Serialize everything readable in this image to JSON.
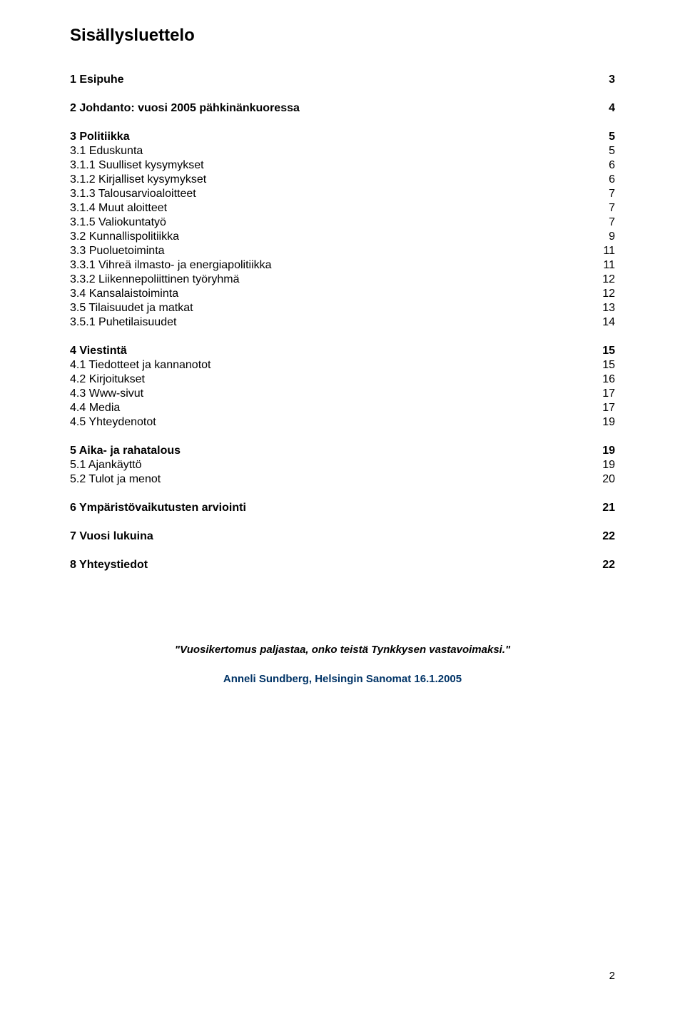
{
  "title": "Sisällysluettelo",
  "toc": [
    {
      "label": "1 Esipuhe",
      "page": "3",
      "bold": true,
      "gap_after": "m"
    },
    {
      "label": "2 Johdanto: vuosi 2005 pähkinänkuoressa",
      "page": "4",
      "bold": true,
      "gap_after": "m"
    },
    {
      "label": "3 Politiikka",
      "page": "5",
      "bold": true
    },
    {
      "label": "3.1 Eduskunta",
      "page": "5"
    },
    {
      "label": "3.1.1 Suulliset kysymykset",
      "page": "6"
    },
    {
      "label": "3.1.2 Kirjalliset kysymykset",
      "page": "6"
    },
    {
      "label": "3.1.3 Talousarvioaloitteet",
      "page": "7"
    },
    {
      "label": "3.1.4 Muut aloitteet",
      "page": "7"
    },
    {
      "label": "3.1.5 Valiokuntatyö",
      "page": "7"
    },
    {
      "label": "3.2 Kunnallispolitiikka",
      "page": "9"
    },
    {
      "label": "3.3 Puoluetoiminta",
      "page": "11"
    },
    {
      "label": "3.3.1 Vihreä ilmasto- ja energiapolitiikka",
      "page": "11"
    },
    {
      "label": "3.3.2 Liikennepoliittinen työryhmä",
      "page": "12"
    },
    {
      "label": "3.4 Kansalaistoiminta",
      "page": "12"
    },
    {
      "label": "3.5 Tilaisuudet ja matkat",
      "page": "13"
    },
    {
      "label": "3.5.1 Puhetilaisuudet",
      "page": "14",
      "gap_after": "m"
    },
    {
      "label": "4 Viestintä",
      "page": "15",
      "bold": true
    },
    {
      "label": "4.1 Tiedotteet ja kannanotot",
      "page": "15"
    },
    {
      "label": "4.2 Kirjoitukset",
      "page": "16"
    },
    {
      "label": "4.3 Www-sivut",
      "page": "17"
    },
    {
      "label": "4.4 Media",
      "page": "17"
    },
    {
      "label": "4.5 Yhteydenotot",
      "page": "19",
      "gap_after": "m"
    },
    {
      "label": "5 Aika- ja rahatalous",
      "page": "19",
      "bold": true
    },
    {
      "label": "5.1 Ajankäyttö",
      "page": "19"
    },
    {
      "label": "5.2 Tulot ja menot",
      "page": "20",
      "gap_after": "m"
    },
    {
      "label": "6 Ympäristövaikutusten arviointi",
      "page": "21",
      "bold": true,
      "gap_after": "m"
    },
    {
      "label": "7 Vuosi lukuina",
      "page": "22",
      "bold": true,
      "gap_after": "m"
    },
    {
      "label": "8 Yhteystiedot",
      "page": "22",
      "bold": true
    }
  ],
  "quote": "\"Vuosikertomus paljastaa, onko teistä Tynkkysen vastavoimaksi.\"",
  "attribution": "Anneli Sundberg, Helsingin Sanomat 16.1.2005",
  "page_number": "2",
  "colors": {
    "text": "#000000",
    "attribution": "#003366",
    "background": "#ffffff"
  }
}
